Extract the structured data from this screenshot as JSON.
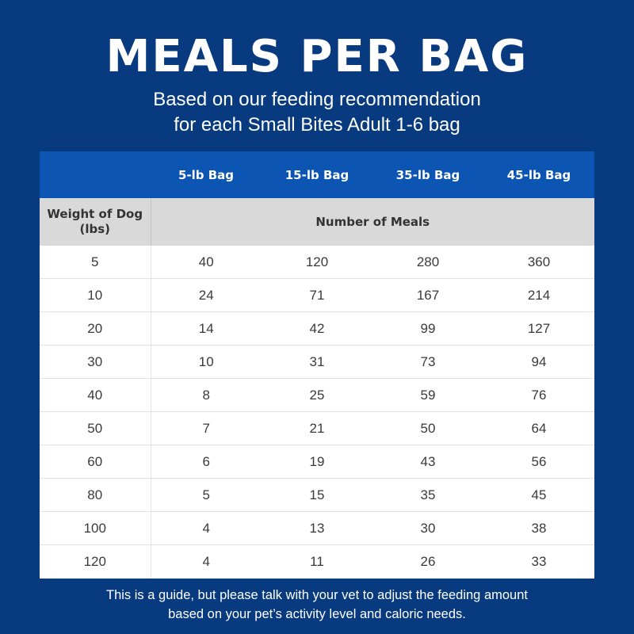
{
  "header": {
    "title": "MEALS PER BAG",
    "subtitle_line1": "Based on our feeding recommendation",
    "subtitle_line2": "for each Small Bites Adult 1-6 bag"
  },
  "table": {
    "columns": [
      "",
      "5-lb Bag",
      "15-lb Bag",
      "35-lb Bag",
      "45-lb Bag"
    ],
    "weight_header_line1": "Weight of Dog",
    "weight_header_line2": "(lbs)",
    "meals_header": "Number of Meals",
    "rows": [
      [
        "5",
        "40",
        "120",
        "280",
        "360"
      ],
      [
        "10",
        "24",
        "71",
        "167",
        "214"
      ],
      [
        "20",
        "14",
        "42",
        "99",
        "127"
      ],
      [
        "30",
        "10",
        "31",
        "73",
        "94"
      ],
      [
        "40",
        "8",
        "25",
        "59",
        "76"
      ],
      [
        "50",
        "7",
        "21",
        "50",
        "64"
      ],
      [
        "60",
        "6",
        "19",
        "43",
        "56"
      ],
      [
        "80",
        "5",
        "15",
        "35",
        "45"
      ],
      [
        "100",
        "4",
        "13",
        "30",
        "38"
      ],
      [
        "120",
        "4",
        "11",
        "26",
        "33"
      ]
    ]
  },
  "footer": {
    "line1": "This is a guide, but please talk with your vet to adjust the feeding amount",
    "line2": "based on your pet’s activity level and caloric needs."
  },
  "colors": {
    "background": "#073a7f",
    "header_bar": "#0c55b3",
    "subheader_bar": "#d9d9d9",
    "table_body": "#ffffff"
  }
}
